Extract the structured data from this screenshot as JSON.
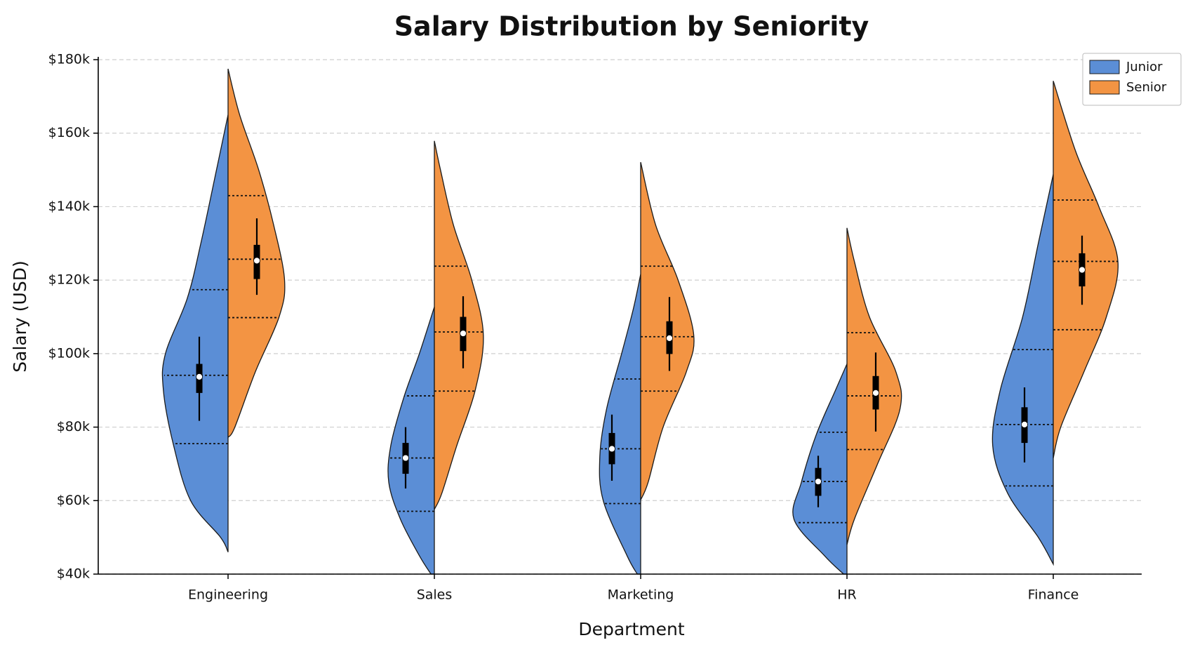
{
  "chart_data": {
    "type": "violin",
    "title": "Salary Distribution by Seniority",
    "x_label": "Department",
    "y_label": "Salary (USD)",
    "categories": [
      "Engineering",
      "Sales",
      "Marketing",
      "HR",
      "Finance"
    ],
    "ylim": [
      40000,
      180000
    ],
    "yticks": [
      {
        "value": 40000,
        "label": "$40k"
      },
      {
        "value": 60000,
        "label": "$60k"
      },
      {
        "value": 80000,
        "label": "$80k"
      },
      {
        "value": 100000,
        "label": "$100k"
      },
      {
        "value": 120000,
        "label": "$120k"
      },
      {
        "value": 140000,
        "label": "$140k"
      },
      {
        "value": 160000,
        "label": "$160k"
      },
      {
        "value": 180000,
        "label": "$180k"
      }
    ],
    "grid": true,
    "legend": "upper right",
    "series": [
      {
        "name": "Junior",
        "color": "#5b8ed6",
        "side": "left",
        "violins": [
          {
            "profile": {
              "y": [
                46000,
                50000,
                60000,
                75000,
                90000,
                100000,
                115000,
                130000,
                150000,
                165000
              ],
              "width": [
                0,
                0.11,
                0.55,
                0.8,
                0.95,
                0.92,
                0.6,
                0.4,
                0.17,
                0
              ]
            },
            "quartiles": [
              75500,
              94100,
              117400
            ],
            "box": [
              81700,
              89300,
              93700,
              97200,
              104600
            ]
          },
          {
            "profile": {
              "y": [
                40000,
                45000,
                55000,
                65000,
                75000,
                88000,
                100000,
                112700
              ],
              "width": [
                0.05,
                0.22,
                0.5,
                0.67,
                0.64,
                0.45,
                0.22,
                0
              ]
            },
            "quartiles": [
              57100,
              71600,
              88500
            ],
            "box": [
              63300,
              67300,
              71600,
              75700,
              80000
            ]
          },
          {
            "profile": {
              "y": [
                40000,
                45000,
                60000,
                72000,
                85000,
                100000,
                112000,
                121600
              ],
              "width": [
                0.05,
                0.2,
                0.55,
                0.6,
                0.5,
                0.28,
                0.11,
                0
              ]
            },
            "quartiles": [
              59200,
              74100,
              93100
            ],
            "box": [
              65400,
              69900,
              74100,
              78400,
              83400
            ]
          },
          {
            "profile": {
              "y": [
                40000,
                45000,
                55000,
                65000,
                78000,
                90000,
                97200
              ],
              "width": [
                0.05,
                0.33,
                0.78,
                0.67,
                0.45,
                0.17,
                0
              ]
            },
            "quartiles": [
              54000,
              65200,
              78600
            ],
            "box": [
              58200,
              61300,
              65200,
              68900,
              72200
            ]
          },
          {
            "profile": {
              "y": [
                42700,
                50000,
                62000,
                75000,
                90000,
                110000,
                130000,
                148800
              ],
              "width": [
                0,
                0.22,
                0.67,
                0.89,
                0.78,
                0.45,
                0.22,
                0
              ]
            },
            "quartiles": [
              64000,
              80700,
              101100
            ],
            "box": [
              70400,
              75700,
              80700,
              85400,
              90800
            ]
          }
        ]
      },
      {
        "name": "Senior",
        "color": "#f39443",
        "side": "right",
        "violins": [
          {
            "profile": {
              "y": [
                77200,
                80000,
                95000,
                110000,
                120000,
                135000,
                150000,
                165000,
                177500
              ],
              "width": [
                0,
                0.1,
                0.4,
                0.75,
                0.83,
                0.67,
                0.45,
                0.17,
                0
              ]
            },
            "quartiles": [
              109800,
              125700,
              143000
            ],
            "box": [
              116000,
              120300,
              125300,
              129600,
              136800
            ]
          },
          {
            "profile": {
              "y": [
                57600,
                62000,
                75000,
                90000,
                105000,
                120000,
                135000,
                150000,
                157900
              ],
              "width": [
                0,
                0.11,
                0.33,
                0.6,
                0.72,
                0.55,
                0.28,
                0.09,
                0
              ]
            },
            "quartiles": [
              89800,
              105900,
              123800
            ],
            "box": [
              96000,
              100700,
              105500,
              110000,
              115600
            ]
          },
          {
            "profile": {
              "y": [
                60200,
                65000,
                80000,
                95000,
                105000,
                120000,
                135000,
                152100
              ],
              "width": [
                0,
                0.11,
                0.33,
                0.67,
                0.78,
                0.55,
                0.22,
                0
              ]
            },
            "quartiles": [
              89800,
              104600,
              123800
            ],
            "box": [
              95300,
              99900,
              104200,
              108800,
              115400
            ]
          },
          {
            "profile": {
              "y": [
                48000,
                55000,
                70000,
                85000,
                95000,
                110000,
                125000,
                134200
              ],
              "width": [
                0,
                0.11,
                0.45,
                0.78,
                0.72,
                0.33,
                0.11,
                0
              ]
            },
            "quartiles": [
              73900,
              88500,
              105700
            ],
            "box": [
              78800,
              84800,
              89300,
              93900,
              100300
            ]
          },
          {
            "profile": {
              "y": [
                71600,
                80000,
                95000,
                110000,
                125000,
                140000,
                155000,
                174200
              ],
              "width": [
                0,
                0.11,
                0.45,
                0.78,
                0.95,
                0.67,
                0.33,
                0
              ]
            },
            "quartiles": [
              106500,
              125100,
              141800
            ],
            "box": [
              113300,
              118300,
              122800,
              127300,
              132100
            ]
          }
        ]
      }
    ]
  }
}
